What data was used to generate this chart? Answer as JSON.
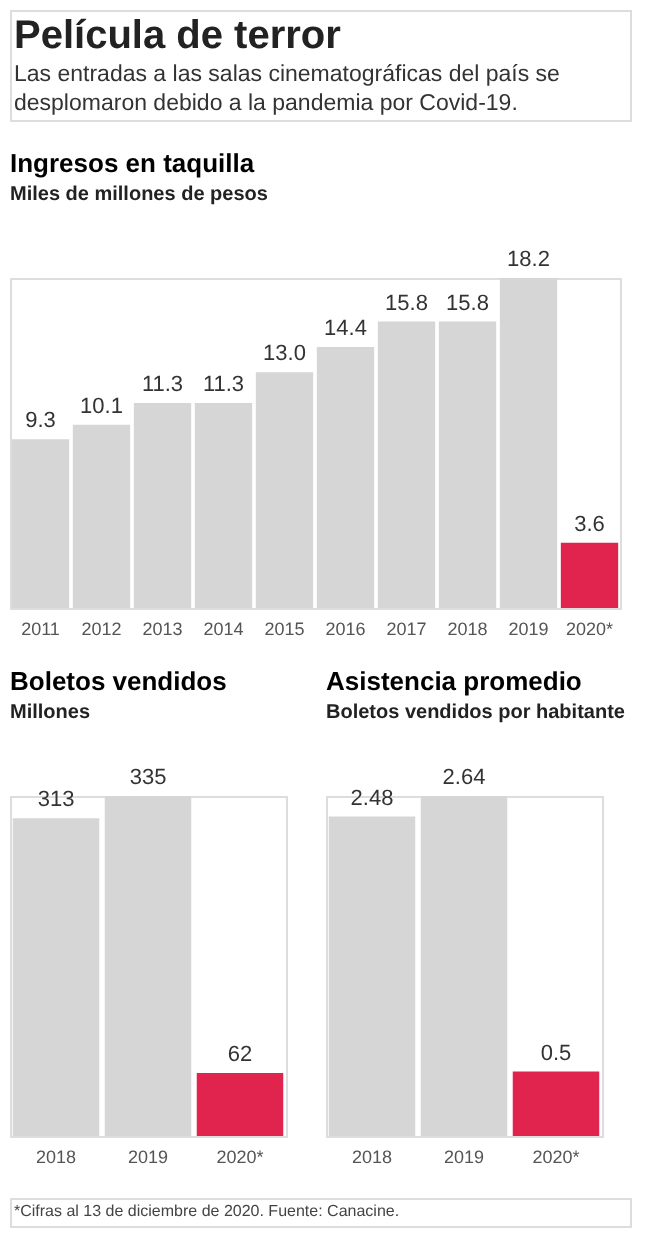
{
  "chart_data": [
    {
      "type": "other",
      "title": "Película de terror",
      "subtitle": "Las entradas a las salas cinematográficas del país se desplomaron debido a la pandemia por Covid-19."
    },
    {
      "type": "bar",
      "title": "Ingresos en taquilla",
      "subtitle": "Miles de millones de pesos",
      "categories": [
        "2011",
        "2012",
        "2013",
        "2014",
        "2015",
        "2016",
        "2017",
        "2018",
        "2019",
        "2020*"
      ],
      "values": [
        9.3,
        10.1,
        11.3,
        11.3,
        13.0,
        14.4,
        15.8,
        15.8,
        18.2,
        3.6
      ],
      "value_labels": [
        "9.3",
        "10.1",
        "11.3",
        "11.3",
        "13.0",
        "14.4",
        "15.8",
        "15.8",
        "18.2",
        "3.6"
      ],
      "colors": [
        "#d6d6d6",
        "#d6d6d6",
        "#d6d6d6",
        "#d6d6d6",
        "#d6d6d6",
        "#d6d6d6",
        "#d6d6d6",
        "#d6d6d6",
        "#d6d6d6",
        "#e0244e"
      ]
    },
    {
      "type": "bar",
      "title": "Boletos vendidos",
      "subtitle": "Millones",
      "categories": [
        "2018",
        "2019",
        "2020*"
      ],
      "values": [
        313,
        335,
        62
      ],
      "value_labels": [
        "313",
        "335",
        "62"
      ],
      "colors": [
        "#d6d6d6",
        "#d6d6d6",
        "#e0244e"
      ]
    },
    {
      "type": "bar",
      "title": "Asistencia promedio",
      "subtitle": "Boletos vendidos por habitante",
      "categories": [
        "2018",
        "2019",
        "2020*"
      ],
      "values": [
        2.48,
        2.64,
        0.5
      ],
      "value_labels": [
        "2.48",
        "2.64",
        "0.5"
      ],
      "colors": [
        "#d6d6d6",
        "#d6d6d6",
        "#e0244e"
      ]
    },
    {
      "type": "other",
      "annotations": [
        "*Cifras al 13 de diciembre de 2020. Fuente: Canacine."
      ]
    }
  ]
}
